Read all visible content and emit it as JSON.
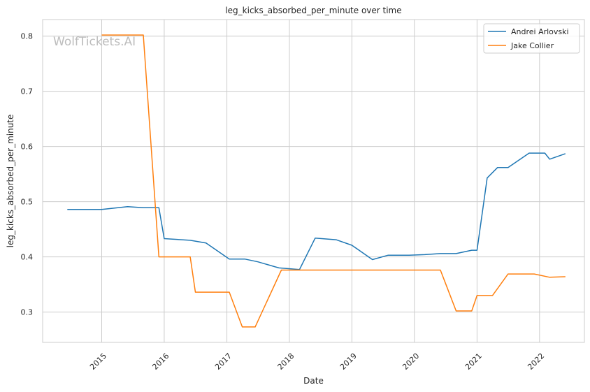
{
  "chart_data": {
    "type": "line",
    "title": "leg_kicks_absorbed_per_minute over time",
    "xlabel": "Date",
    "ylabel": "leg_kicks_absorbed_per_minute",
    "watermark": "WolfTickets.AI",
    "x_ticks": [
      "2015",
      "2016",
      "2017",
      "2018",
      "2019",
      "2020",
      "2021",
      "2022"
    ],
    "y_ticks": [
      "0.3",
      "0.4",
      "0.5",
      "0.6",
      "0.7",
      "0.8"
    ],
    "xlim": [
      "2014-01-21",
      "2022-09-20"
    ],
    "ylim": [
      0.245,
      0.83
    ],
    "grid": true,
    "legend_position": "top-right",
    "series": [
      {
        "name": "Andrei Arlovski",
        "color": "#1f77b4",
        "points": [
          [
            "2014-06-14",
            0.486
          ],
          [
            "2015-01-01",
            0.486
          ],
          [
            "2015-06-01",
            0.491
          ],
          [
            "2015-09-01",
            0.489
          ],
          [
            "2015-12-01",
            0.489
          ],
          [
            "2016-01-01",
            0.433
          ],
          [
            "2016-06-01",
            0.43
          ],
          [
            "2016-09-01",
            0.425
          ],
          [
            "2017-01-15",
            0.396
          ],
          [
            "2017-04-15",
            0.396
          ],
          [
            "2017-07-01",
            0.391
          ],
          [
            "2017-11-01",
            0.38
          ],
          [
            "2018-03-01",
            0.377
          ],
          [
            "2018-06-01",
            0.434
          ],
          [
            "2018-10-01",
            0.431
          ],
          [
            "2019-01-01",
            0.421
          ],
          [
            "2019-05-01",
            0.395
          ],
          [
            "2019-08-01",
            0.403
          ],
          [
            "2019-12-01",
            0.403
          ],
          [
            "2020-03-01",
            0.404
          ],
          [
            "2020-06-01",
            0.406
          ],
          [
            "2020-09-01",
            0.406
          ],
          [
            "2020-12-01",
            0.412
          ],
          [
            "2021-01-01",
            0.412
          ],
          [
            "2021-03-01",
            0.543
          ],
          [
            "2021-05-01",
            0.562
          ],
          [
            "2021-07-01",
            0.562
          ],
          [
            "2021-11-01",
            0.588
          ],
          [
            "2022-02-01",
            0.588
          ],
          [
            "2022-03-01",
            0.577
          ],
          [
            "2022-06-01",
            0.587
          ]
        ]
      },
      {
        "name": "Jake Collier",
        "color": "#ff7f0e",
        "points": [
          [
            "2015-01-01",
            0.802
          ],
          [
            "2015-09-01",
            0.802
          ],
          [
            "2015-12-01",
            0.4
          ],
          [
            "2016-06-01",
            0.4
          ],
          [
            "2016-07-01",
            0.336
          ],
          [
            "2017-01-15",
            0.336
          ],
          [
            "2017-04-01",
            0.273
          ],
          [
            "2017-06-15",
            0.273
          ],
          [
            "2017-11-15",
            0.376
          ],
          [
            "2018-03-01",
            0.376
          ],
          [
            "2020-06-01",
            0.376
          ],
          [
            "2020-09-01",
            0.302
          ],
          [
            "2020-12-01",
            0.302
          ],
          [
            "2021-01-01",
            0.33
          ],
          [
            "2021-04-01",
            0.33
          ],
          [
            "2021-07-01",
            0.369
          ],
          [
            "2021-12-01",
            0.369
          ],
          [
            "2022-03-01",
            0.363
          ],
          [
            "2022-06-01",
            0.364
          ]
        ]
      }
    ]
  }
}
